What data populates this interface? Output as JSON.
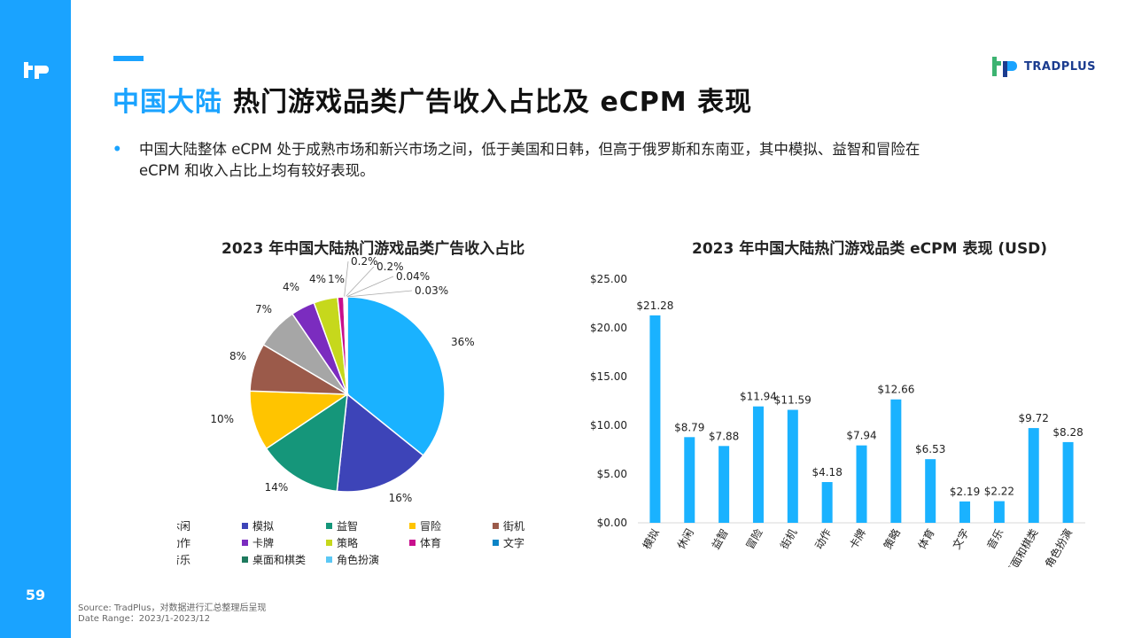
{
  "page": {
    "number": "59",
    "title_highlight": "中国大陆",
    "title_rest": "热门游戏品类广告收入占比及 eCPM 表现",
    "bullet_line1": "中国大陆整体  eCPM  处于成熟市场和新兴市场之间，低于美国和日韩，但高于俄罗斯和东南亚，其中模拟、益智和冒险在",
    "bullet_line2": "eCPM 和收入占比上均有较好表现。",
    "bullet_symbol": "•",
    "brand_text": "TRADPLUS",
    "footer_source": "Source: TradPlus，对数据进行汇总整理后呈现",
    "footer_range": "Date Range：2023/1-2023/12",
    "colors": {
      "accent": "#1aa3ff",
      "brand_dark": "#1b3c8f",
      "brand_green": "#3cb371",
      "bar": "#1ab2ff"
    }
  },
  "chart_data": [
    {
      "type": "pie",
      "title": "2023 年中国大陆热门游戏品类广告收入占比",
      "labels": [
        "休闲",
        "模拟",
        "益智",
        "冒险",
        "街机",
        "动作",
        "卡牌",
        "策略",
        "体育",
        "文字",
        "音乐",
        "桌面和棋类",
        "角色扮演"
      ],
      "values": [
        36,
        16,
        14,
        10,
        8,
        7,
        4,
        4,
        1,
        0.2,
        0.2,
        0.04,
        0.03
      ],
      "value_labels": [
        "36%",
        "16%",
        "14%",
        "10%",
        "8%",
        "7%",
        "4%",
        "4%",
        "1%",
        "0.2%",
        "0.2%",
        "0.04%",
        "0.03%"
      ],
      "colors": [
        "#1ab2ff",
        "#3d44b8",
        "#15967a",
        "#ffc400",
        "#9b5a4a",
        "#a6a6a6",
        "#7b2cbf",
        "#c6d81c",
        "#c8108d",
        "#0b84c6",
        "#2b2f6e",
        "#1e7a5e",
        "#5bc8f5"
      ],
      "legend_position": "bottom"
    },
    {
      "type": "bar",
      "title": "2023 年中国大陆热门游戏品类 eCPM 表现 (USD)",
      "categories": [
        "模拟",
        "休闲",
        "益智",
        "冒险",
        "街机",
        "动作",
        "卡牌",
        "策略",
        "体育",
        "文字",
        "音乐",
        "桌面和棋类",
        "角色扮演"
      ],
      "values": [
        21.28,
        8.79,
        7.88,
        11.94,
        11.59,
        4.18,
        7.94,
        12.66,
        6.53,
        2.19,
        2.22,
        9.72,
        8.28
      ],
      "value_labels": [
        "$21.28",
        "$8.79",
        "$7.88",
        "$11.94",
        "$11.59",
        "$4.18",
        "$7.94",
        "$12.66",
        "$6.53",
        "$2.19",
        "$2.22",
        "$9.72",
        "$8.28"
      ],
      "ylim": [
        0,
        25
      ],
      "yticks": [
        0,
        5,
        10,
        15,
        20,
        25
      ],
      "ytick_labels": [
        "$0.00",
        "$5.00",
        "$10.00",
        "$15.00",
        "$20.00",
        "$25.00"
      ],
      "color": "#1ab2ff",
      "grid": false
    }
  ]
}
